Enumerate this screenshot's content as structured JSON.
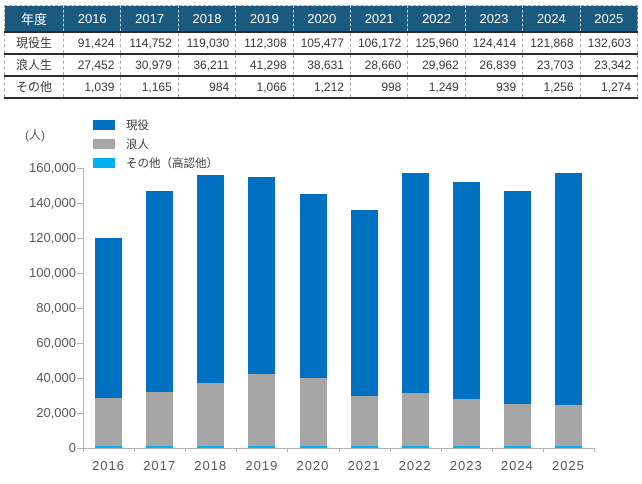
{
  "table": {
    "header_label": "年度",
    "years": [
      "2016",
      "2017",
      "2018",
      "2019",
      "2020",
      "2021",
      "2022",
      "2023",
      "2024",
      "2025"
    ],
    "rows": [
      {
        "label": "現役生",
        "values": [
          "91,424",
          "114,752",
          "119,030",
          "112,308",
          "105,477",
          "106,172",
          "125,960",
          "124,414",
          "121,868",
          "132,603"
        ]
      },
      {
        "label": "浪人生",
        "values": [
          "27,452",
          "30,979",
          "36,211",
          "41,298",
          "38,631",
          "28,660",
          "29,962",
          "26,839",
          "23,703",
          "23,342"
        ]
      },
      {
        "label": "その他",
        "values": [
          "1,039",
          "1,165",
          "984",
          "1,066",
          "1,212",
          "998",
          "1,249",
          "939",
          "1,256",
          "1,274"
        ]
      }
    ]
  },
  "chart": {
    "unit_label": "(人)",
    "legend": [
      {
        "label": "現役",
        "color": "#0070C0"
      },
      {
        "label": "浪人",
        "color": "#A6A6A6"
      },
      {
        "label": "その他（高認他）",
        "color": "#00B0F0"
      }
    ]
  },
  "chart_data": {
    "type": "bar",
    "stacked": true,
    "title": "",
    "xlabel": "",
    "ylabel": "(人)",
    "categories": [
      "2016",
      "2017",
      "2018",
      "2019",
      "2020",
      "2021",
      "2022",
      "2023",
      "2024",
      "2025"
    ],
    "series": [
      {
        "name": "現役",
        "color": "#0070C0",
        "values": [
          91424,
          114752,
          119030,
          112308,
          105477,
          106172,
          125960,
          124414,
          121868,
          132603
        ]
      },
      {
        "name": "浪人",
        "color": "#A6A6A6",
        "values": [
          27452,
          30979,
          36211,
          41298,
          38631,
          28660,
          29962,
          26839,
          23703,
          23342
        ]
      },
      {
        "name": "その他（高認他）",
        "color": "#00B0F0",
        "values": [
          1039,
          1165,
          984,
          1066,
          1212,
          998,
          1249,
          939,
          1256,
          1274
        ]
      }
    ],
    "stack_order_bottom_to_top": [
      "その他（高認他）",
      "浪人",
      "現役"
    ],
    "ylim": [
      0,
      160000
    ],
    "ytick_step": 20000,
    "grid": false,
    "legend_position": "top-left"
  },
  "colors": {
    "table_header_bg": "#1A5A7E",
    "table_header_text": "#FFFFFF",
    "table_text": "#3A3A3A",
    "axis_line": "#B4B4B4",
    "axis_text": "#595959"
  }
}
